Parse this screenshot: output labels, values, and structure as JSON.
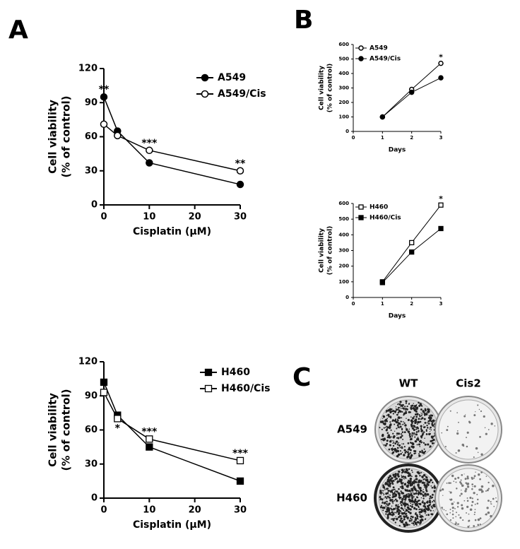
{
  "chart_data": [
    {
      "type": "line",
      "x": [
        0,
        3,
        10,
        30
      ],
      "xlabel": "Cisplatin (μM)",
      "ylabel": [
        "Cell viability",
        "(% of control)"
      ],
      "xlim": [
        0,
        30
      ],
      "xticks": [
        0,
        10,
        20,
        30
      ],
      "ylim": [
        0,
        120
      ],
      "yticks": [
        0,
        30,
        60,
        90,
        120
      ],
      "series": [
        {
          "name": "A549",
          "color": "#000000",
          "marker": "circle",
          "filled": true,
          "values": [
            95,
            65,
            37,
            18
          ]
        },
        {
          "name": "A549/Cis",
          "color": "#000000",
          "marker": "circle",
          "filled": false,
          "values": [
            71,
            61,
            48,
            30
          ]
        }
      ],
      "annotations": [
        {
          "x": 0,
          "text": "**"
        },
        {
          "x": 10,
          "text": "***"
        },
        {
          "x": 30,
          "text": "**"
        }
      ]
    },
    {
      "type": "line",
      "x": [
        1,
        2,
        3
      ],
      "xlabel": "Days",
      "ylabel": [
        "Cell viability",
        "(% of control)"
      ],
      "xlim": [
        0,
        3
      ],
      "xticks": [
        0,
        1,
        2,
        3
      ],
      "ylim": [
        0,
        600
      ],
      "yticks": [
        0,
        100,
        200,
        300,
        400,
        500,
        600
      ],
      "series": [
        {
          "name": "A549",
          "color": "#000000",
          "marker": "circle",
          "filled": false,
          "values": [
            100,
            290,
            470
          ]
        },
        {
          "name": "A549/Cis",
          "color": "#000000",
          "marker": "circle",
          "filled": true,
          "values": [
            100,
            270,
            370
          ]
        }
      ],
      "annotations": [
        {
          "x": 3,
          "text": "*"
        }
      ]
    },
    {
      "type": "line",
      "x": [
        1,
        2,
        3
      ],
      "xlabel": "Days",
      "ylabel": [
        "Cell viability",
        "(% of control)"
      ],
      "xlim": [
        0,
        3
      ],
      "xticks": [
        0,
        1,
        2,
        3
      ],
      "ylim": [
        0,
        600
      ],
      "yticks": [
        0,
        100,
        200,
        300,
        400,
        500,
        600
      ],
      "series": [
        {
          "name": "H460",
          "color": "#000000",
          "marker": "square",
          "filled": false,
          "values": [
            100,
            350,
            590
          ]
        },
        {
          "name": "H460/Cis",
          "color": "#000000",
          "marker": "square",
          "filled": true,
          "values": [
            95,
            290,
            440
          ]
        }
      ],
      "annotations": [
        {
          "x": 3,
          "text": "*"
        }
      ]
    },
    {
      "type": "line",
      "x": [
        0,
        3,
        10,
        30
      ],
      "xlabel": "Cisplatin (μM)",
      "ylabel": [
        "Cell viability",
        "(% of control)"
      ],
      "xlim": [
        0,
        30
      ],
      "xticks": [
        0,
        10,
        20,
        30
      ],
      "ylim": [
        0,
        120
      ],
      "yticks": [
        0,
        30,
        60,
        90,
        120
      ],
      "series": [
        {
          "name": "H460",
          "color": "#000000",
          "marker": "square",
          "filled": true,
          "values": [
            102,
            73,
            45,
            15
          ]
        },
        {
          "name": "H460/Cis",
          "color": "#000000",
          "marker": "square",
          "filled": false,
          "values": [
            93,
            70,
            52,
            33
          ]
        }
      ],
      "annotations": [
        {
          "x": 3,
          "text": "*",
          "below": true
        },
        {
          "x": 10,
          "text": "***"
        },
        {
          "x": 30,
          "text": "***"
        }
      ]
    }
  ],
  "panel_labels": [
    "A",
    "B",
    "C"
  ],
  "plate": {
    "columns": [
      "WT",
      "Cis2"
    ],
    "rows": [
      "A549",
      "H460"
    ]
  }
}
